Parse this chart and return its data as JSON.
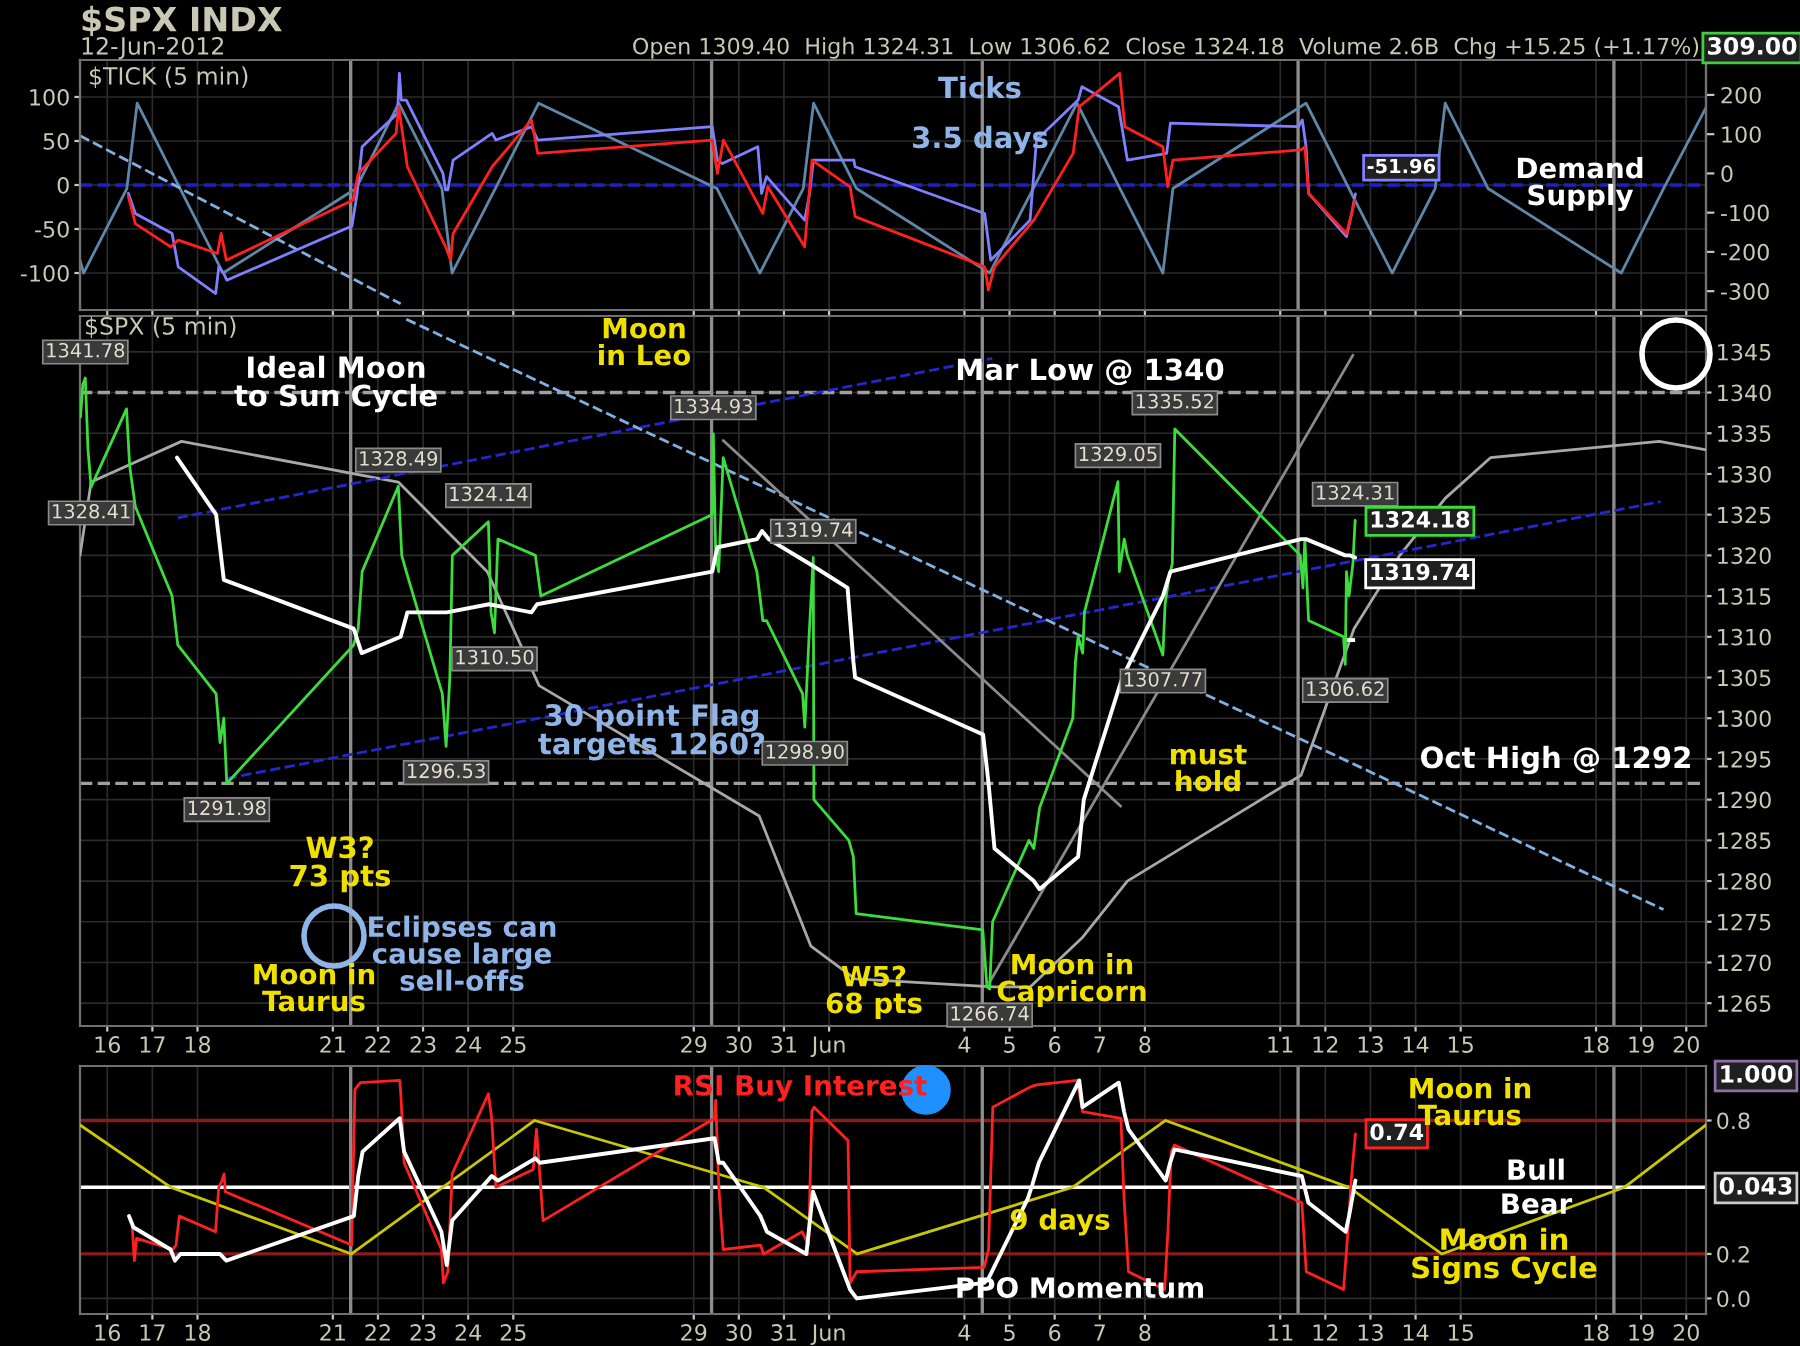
{
  "chart_data": [
    {
      "type": "line",
      "title": "$SPX INDX",
      "subtitle": "Open 1309.40  High 1324.31  Low 1306.62  Close 1324.18  Volume 2.6B  Chg +15.25 (+1.17%)",
      "annotations": [
        "12-Jun-2012",
        "$TICK (5 min)",
        "309.00",
        "Ticks",
        "3.5 days",
        "Demand\nSupply"
      ],
      "xlim": [
        "2012-05-15T09:30",
        "2012-06-20T10:30"
      ],
      "xticks": [
        {
          "value": "2012-05-16",
          "label": null
        },
        {
          "value": "2012-05-17",
          "label": null
        },
        {
          "value": "2012-05-18",
          "label": null
        },
        {
          "value": "2012-05-21",
          "label": null
        },
        {
          "value": "2012-05-22",
          "label": null
        },
        {
          "value": "2012-05-23",
          "label": null
        },
        {
          "value": "2012-05-24",
          "label": null
        },
        {
          "value": "2012-05-25",
          "label": null
        },
        {
          "value": "2012-05-29",
          "label": null
        },
        {
          "value": "2012-05-30",
          "label": null
        },
        {
          "value": "2012-05-31",
          "label": null
        },
        {
          "value": "2012-06-01",
          "label": null
        },
        {
          "value": "2012-06-04",
          "label": null
        },
        {
          "value": "2012-06-05",
          "label": null
        },
        {
          "value": "2012-06-06",
          "label": null
        },
        {
          "value": "2012-06-07",
          "label": null
        },
        {
          "value": "2012-06-08",
          "label": null
        },
        {
          "value": "2012-06-11",
          "label": null
        },
        {
          "value": "2012-06-12",
          "label": null
        },
        {
          "value": "2012-06-13",
          "label": null
        },
        {
          "value": "2012-06-14",
          "label": null
        },
        {
          "value": "2012-06-15",
          "label": null
        },
        {
          "value": "2012-06-18",
          "label": null
        },
        {
          "value": "2012-06-19",
          "label": null
        },
        {
          "value": "2012-06-20",
          "label": null
        }
      ],
      "ylim": [
        -142,
        142
      ],
      "yticks": [
        -100,
        -50,
        0,
        50,
        100
      ],
      "y2lim": [
        -348,
        289
      ],
      "y2ticks": [
        -300,
        -200,
        -100,
        0,
        100,
        200
      ],
      "tick_labels": "y",
      "grid": true,
      "ref_lines": [
        {
          "axis": "y",
          "value": 0,
          "color": "#2020c0",
          "line_style": "dashed"
        },
        {
          "axis": "x",
          "value": "2012-05-21T09:30",
          "color": "#8c8c8c"
        },
        {
          "axis": "x",
          "value": "2012-05-29T09:30",
          "color": "#8c8c8c"
        },
        {
          "axis": "x",
          "value": "2012-06-04T09:30",
          "color": "#8c8c8c"
        },
        {
          "axis": "x",
          "value": "2012-06-11T09:30",
          "color": "#8c8c8c"
        },
        {
          "axis": "x",
          "value": "2012-06-18T09:30",
          "color": "#8c8c8c"
        }
      ],
      "series": [
        {
          "color": "#5f87a8",
          "x": [
            "2012-05-15T09:30",
            "2012-05-15T11:25",
            "2012-05-16T10:25",
            "2012-05-16T15:55",
            "2012-05-17T14:45",
            "2012-05-18T13:35",
            "2012-05-21T12:20",
            "2012-05-22T11:05",
            "2012-05-23T10:00",
            "2012-05-23T15:25",
            "2012-05-24T14:25",
            "2012-05-25T13:30",
            "2012-05-29T12:20",
            "2012-05-30T11:10",
            "2012-05-31T10:15",
            "2012-05-31T15:45",
            "2012-06-01T14:35",
            "2012-06-04T13:25",
            "2012-06-05T12:35",
            "2012-06-06T11:55",
            "2012-06-07T10:45",
            "2012-06-08T09:35",
            "2012-06-08T14:55",
            "2012-06-11T13:45",
            "2012-06-12T12:35",
            "2012-06-13T11:35",
            "2012-06-14T10:25",
            "2012-06-14T15:45",
            "2012-06-15T14:35",
            "2012-06-18T13:25",
            "2012-06-19T11:55",
            "2012-06-20T10:30"
          ],
          "values": [
            -85,
            -100,
            -4,
            93,
            -4,
            -100,
            -4,
            93,
            -4,
            -100,
            -4,
            93,
            -4,
            -100,
            -4,
            93,
            -4,
            -100,
            -4,
            93,
            -4,
            -100,
            -4,
            93,
            -4,
            -100,
            -4,
            93,
            -4,
            -100,
            -4,
            88
          ]
        },
        {
          "color": "#7fb0e0",
          "line_style": "dashed",
          "x": [
            "2012-05-15T09:30",
            "2012-05-22T12:05"
          ],
          "values": [
            56,
            -135
          ]
        },
        {
          "color": "#8080ff",
          "axis": "y2",
          "x": [
            "2012-05-16T11:15",
            "2012-05-16T14:55",
            "2012-05-17T10:30",
            "2012-05-17T13:45",
            "2012-05-18T09:40",
            "2012-05-18T11:20",
            "2012-05-18T14:00",
            "2012-05-18T15:35",
            "2012-05-21T10:10",
            "2012-05-21T12:55",
            "2012-05-21T15:35",
            "2012-05-22T10:25",
            "2012-05-22T11:25",
            "2012-05-22T12:25",
            "2012-05-22T15:05",
            "2012-05-23T10:35",
            "2012-05-23T12:00",
            "2012-05-23T13:10",
            "2012-05-23T16:00",
            "2012-05-24T12:45",
            "2012-05-24T14:45",
            "2012-05-25T09:40",
            "2012-05-25T13:00",
            "2012-05-29T09:50",
            "2012-05-29T12:35",
            "2012-05-29T15:15",
            "2012-05-30T10:05",
            "2012-05-30T12:05",
            "2012-05-30T14:45",
            "2012-05-31T11:00",
            "2012-05-31T13:40",
            "2012-05-31T15:40",
            "2012-06-01T13:10",
            "2012-06-01T13:50",
            "2012-06-04T10:45",
            "2012-06-04T14:00",
            "2012-06-05T10:55",
            "2012-06-05T14:20",
            "2012-06-06T12:30",
            "2012-06-06T14:30",
            "2012-06-07T10:00",
            "2012-06-07T14:40",
            "2012-06-08T11:35",
            "2012-06-08T13:35",
            "2012-06-11T09:40",
            "2012-06-11T11:45",
            "2012-06-11T13:45",
            "2012-06-11T15:05",
            "2012-06-12T11:15",
            "2012-06-12T14:00",
            "2012-06-12T16:00"
          ],
          "values": [
            -51,
            -102,
            -153,
            -238,
            -306,
            -238,
            -255,
            -272,
            -134,
            -51,
            68,
            153,
            255,
            187,
            187,
            0,
            -42,
            -42,
            34,
            102,
            85,
            119,
            85,
            119,
            34,
            25,
            68,
            -51,
            -8,
            -119,
            -51,
            34,
            34,
            17,
            -102,
            -221,
            -119,
            85,
            187,
            221,
            170,
            34,
            51,
            128,
            119,
            136,
            68,
            -51,
            -161,
            -102,
            -51.96
          ],
          "value_labels": [
            null,
            null,
            null,
            null,
            null,
            null,
            null,
            null,
            null,
            null,
            null,
            null,
            null,
            null,
            null,
            null,
            null,
            null,
            null,
            null,
            null,
            null,
            null,
            null,
            null,
            null,
            null,
            null,
            null,
            null,
            null,
            null,
            null,
            null,
            null,
            null,
            null,
            null,
            null,
            null,
            null,
            null,
            null,
            null,
            null,
            null,
            null,
            null,
            null,
            null,
            "-51.96"
          ]
        },
        {
          "color": "#ff2020",
          "axis": "y2",
          "x": [
            "2012-05-16T11:15",
            "2012-05-16T14:55",
            "2012-05-17T09:45",
            "2012-05-17T13:45",
            "2012-05-18T10:35",
            "2012-05-18T12:35",
            "2012-05-18T15:20",
            "2012-05-21T10:50",
            "2012-05-21T13:30",
            "2012-05-22T09:40",
            "2012-05-22T11:05",
            "2012-05-22T13:05",
            "2012-05-22T15:40",
            "2012-05-23T12:00",
            "2012-05-23T14:40",
            "2012-05-23T16:00",
            "2012-05-24T12:45",
            "2012-05-25T09:40",
            "2012-05-25T13:00",
            "2012-05-29T09:50",
            "2012-05-29T12:35",
            "2012-05-29T15:50",
            "2012-05-30T12:45",
            "2012-05-30T15:25",
            "2012-05-31T11:00",
            "2012-05-31T14:55",
            "2012-06-01T11:10",
            "2012-06-01T13:50",
            "2012-06-04T10:45",
            "2012-06-04T12:45",
            "2012-06-04T16:00",
            "2012-06-05T12:55",
            "2012-06-06T09:50",
            "2012-06-06T13:05",
            "2012-06-07T10:35",
            "2012-06-07T13:20",
            "2012-06-08T09:35",
            "2012-06-08T12:10",
            "2012-06-08T14:55",
            "2012-06-11T11:05",
            "2012-06-11T13:05",
            "2012-06-11T15:05",
            "2012-06-12T11:15",
            "2012-06-12T14:00",
            "2012-06-12T15:40"
          ],
          "values": [
            -59,
            -128,
            -187,
            -170,
            -204,
            -153,
            -221,
            -68,
            0,
            102,
            170,
            102,
            17,
            -187,
            -221,
            -153,
            17,
            136,
            51,
            85,
            0,
            85,
            -102,
            -34,
            -187,
            34,
            -34,
            -110,
            -238,
            -297,
            -238,
            -119,
            51,
            170,
            255,
            119,
            68,
            -34,
            34,
            60,
            68,
            -51,
            -153,
            -102,
            -68
          ]
        }
      ]
    },
    {
      "type": "line",
      "annotations": [
        "$SPX (5 min)",
        "Ideal Moon\nto Sun Cycle",
        "Moon\nin Leo",
        "Mar Low @ 1340",
        "Oct High @ 1292",
        "30 point Flag\ntargets 1260?",
        "W3?\n73 pts",
        "Eclipses can\ncause large\nsell-offs",
        "Moon in\nTaurus",
        "W5?\n68 pts",
        "Moon in\nCapricorn",
        "must\nhold"
      ],
      "xlim": [
        "2012-05-15T09:30",
        "2012-06-20T10:30"
      ],
      "xticks": [
        {
          "value": "2012-05-16",
          "label": "16"
        },
        {
          "value": "2012-05-17",
          "label": "17"
        },
        {
          "value": "2012-05-18",
          "label": "18"
        },
        {
          "value": "2012-05-21",
          "label": "21"
        },
        {
          "value": "2012-05-22",
          "label": "22"
        },
        {
          "value": "2012-05-23",
          "label": "23"
        },
        {
          "value": "2012-05-24",
          "label": "24"
        },
        {
          "value": "2012-05-25",
          "label": "25"
        },
        {
          "value": "2012-05-29",
          "label": "29"
        },
        {
          "value": "2012-05-30",
          "label": "30"
        },
        {
          "value": "2012-05-31",
          "label": "31"
        },
        {
          "value": "2012-06-01",
          "label": "Jun"
        },
        {
          "value": "2012-06-04",
          "label": "4"
        },
        {
          "value": "2012-06-05",
          "label": "5"
        },
        {
          "value": "2012-06-06",
          "label": "6"
        },
        {
          "value": "2012-06-07",
          "label": "7"
        },
        {
          "value": "2012-06-08",
          "label": "8"
        },
        {
          "value": "2012-06-11",
          "label": "11"
        },
        {
          "value": "2012-06-12",
          "label": "12"
        },
        {
          "value": "2012-06-13",
          "label": "13"
        },
        {
          "value": "2012-06-14",
          "label": "14"
        },
        {
          "value": "2012-06-15",
          "label": "15"
        },
        {
          "value": "2012-06-18",
          "label": "18"
        },
        {
          "value": "2012-06-19",
          "label": "19"
        },
        {
          "value": "2012-06-20",
          "label": "20"
        }
      ],
      "ylim": [
        1262.2,
        1349.4
      ],
      "yticks": [
        1265,
        1270,
        1275,
        1280,
        1285,
        1290,
        1295,
        1300,
        1305,
        1310,
        1315,
        1320,
        1325,
        1330,
        1335,
        1340,
        1345
      ],
      "grid": true,
      "ref_lines": [
        {
          "axis": "y",
          "value": 1340,
          "color": "#a0a0a0",
          "line_style": "dashed"
        },
        {
          "axis": "y",
          "value": 1292,
          "color": "#a0a0a0",
          "line_style": "dashed"
        },
        {
          "axis": "x",
          "value": "2012-05-21T09:30",
          "color": "#8c8c8c"
        },
        {
          "axis": "x",
          "value": "2012-05-29T09:30",
          "color": "#8c8c8c"
        },
        {
          "axis": "x",
          "value": "2012-06-04T09:30",
          "color": "#8c8c8c"
        },
        {
          "axis": "x",
          "value": "2012-06-11T09:30",
          "color": "#8c8c8c"
        },
        {
          "axis": "x",
          "value": "2012-06-18T09:30",
          "color": "#8c8c8c"
        }
      ],
      "series": [
        {
          "color": "#a8a8a8",
          "x": [
            "2012-05-15T09:30",
            "2012-05-15T15:25",
            "2012-05-17T15:30",
            "2012-05-22T10:50",
            "2012-05-24T10:10",
            "2012-05-25T13:45",
            "2012-05-30T10:50",
            "2012-05-31T14:20",
            "2012-06-01T13:50",
            "2012-06-04T15:25",
            "2012-06-05T10:55",
            "2012-06-06T14:30",
            "2012-06-07T14:40",
            "2012-06-11T11:05",
            "2012-06-12T15:15",
            "2012-06-13T15:35",
            "2012-06-14T15:45",
            "2012-06-15T15:50",
            "2012-06-19T09:40",
            "2012-06-20T09:55"
          ],
          "values": [
            1320,
            1329,
            1334,
            1329,
            1318,
            1304,
            1288,
            1272,
            1268,
            1267,
            1267,
            1273,
            1280,
            1293,
            1311,
            1320,
            1327,
            1332,
            1334,
            1333
          ]
        },
        {
          "color": "#2626d0",
          "line_style": "dashed",
          "x": [
            "2012-05-17T13:30",
            "2012-06-04T14:50"
          ],
          "values": [
            1324.6,
            1344.2
          ]
        },
        {
          "color": "#2626d0",
          "line_style": "dashed",
          "x": [
            "2012-05-18T15:35",
            "2012-06-19T10:20"
          ],
          "values": [
            1292.6,
            1326.6
          ]
        },
        {
          "color": "#7fb0e0",
          "line_style": "dashed",
          "x": [
            "2012-05-22T15:05",
            "2012-06-19T11:55"
          ],
          "values": [
            1349,
            1276.5
          ]
        },
        {
          "color": "#8a8a8a",
          "x": [
            "2012-05-29T15:40",
            "2012-06-07T11:10"
          ],
          "values": [
            1334.1,
            1289.2
          ]
        },
        {
          "color": "#8a8a8a",
          "x": [
            "2012-06-04T13:25",
            "2012-06-12T14:40"
          ],
          "values": [
            1267.6,
            1344.6
          ]
        },
        {
          "color": "#ffffff",
          "line_style": "dashed",
          "x": [
            "2012-06-12T09:40",
            "2012-06-12T15:50"
          ],
          "values": [
            1309.6,
            1309.6
          ]
        },
        {
          "color": "#3ddc3d",
          "x": [
            "2012-05-15T09:45",
            "2012-05-15T11:00",
            "2012-05-15T12:20",
            "2012-05-15T13:45",
            "2012-05-15T15:25",
            "2012-05-16T10:15",
            "2012-05-16T11:55",
            "2012-05-16T14:55",
            "2012-05-17T10:30",
            "2012-05-17T13:30",
            "2012-05-18T09:55",
            "2012-05-18T12:00",
            "2012-05-18T14:00",
            "2012-05-18T15:35",
            "2012-05-21T11:05",
            "2012-05-21T13:30",
            "2012-05-21T15:35",
            "2012-05-22T10:50",
            "2012-05-22T12:40",
            "2012-05-22T15:05",
            "2012-05-23T10:15",
            "2012-05-23T12:15",
            "2012-05-23T14:15",
            "2012-05-23T15:35",
            "2012-05-24T10:45",
            "2012-05-24T12:10",
            "2012-05-24T14:00",
            "2012-05-24T15:50",
            "2012-05-25T11:45",
            "2012-05-25T14:40",
            "2012-05-29T09:40",
            "2012-05-29T10:25",
            "2012-05-29T11:40",
            "2012-05-29T13:15",
            "2012-05-29T15:40",
            "2012-05-30T09:35",
            "2012-05-30T12:45",
            "2012-05-30T14:45",
            "2012-05-31T09:55",
            "2012-05-31T11:05",
            "2012-05-31T13:20",
            "2012-05-31T15:35",
            "2012-05-31T15:55",
            "2012-06-01T10:30",
            "2012-06-01T12:55",
            "2012-06-01T14:25",
            "2012-06-04T09:45",
            "2012-06-04T12:00",
            "2012-06-04T13:25",
            "2012-06-04T15:00",
            "2012-06-05T10:20",
            "2012-06-05T12:55",
            "2012-06-05T16:00",
            "2012-06-06T09:40",
            "2012-06-06T11:05",
            "2012-06-06T12:30",
            "2012-06-06T14:55",
            "2012-06-06T15:50",
            "2012-06-07T09:40",
            "2012-06-07T10:25",
            "2012-06-07T13:00",
            "2012-06-07T14:40",
            "2012-06-08T09:35",
            "2012-06-08T10:45",
            "2012-06-08T12:35",
            "2012-06-08T14:35",
            "2012-06-08T15:55",
            "2012-06-11T10:40",
            "2012-06-11T12:05",
            "2012-06-11T13:05",
            "2012-06-11T15:05",
            "2012-06-12T09:40",
            "2012-06-12T10:35",
            "2012-06-12T11:15",
            "2012-06-12T12:35",
            "2012-06-12T14:40",
            "2012-06-12T15:50",
            "2012-06-12T16:00"
          ],
          "values": [
            1337,
            1341,
            1341.78,
            1333,
            1328.41,
            1338,
            1331,
            1326,
            1315,
            1309,
            1303,
            1297,
            1300,
            1291.98,
            1309,
            1311,
            1318,
            1328.49,
            1320,
            1318,
            1303,
            1296.53,
            1305,
            1320,
            1324.14,
            1313,
            1310.5,
            1322,
            1320,
            1315,
            1325,
            1334.93,
            1320,
            1318,
            1332,
            1318,
            1312,
            1312,
            1303,
            1298.9,
            1310,
            1319.74,
            1290,
            1285,
            1283,
            1276,
            1274,
            1267,
            1266.74,
            1275,
            1285,
            1284,
            1289,
            1300,
            1307,
            1310,
            1308,
            1313,
            1329.05,
            1318,
            1322,
            1320,
            1307.77,
            1314,
            1317,
            1319,
            1335.52,
            1320,
            1316,
            1322,
            1312,
            1310,
            1306.62,
            1318,
            1315,
            1319,
            1324.31,
            1324.18
          ],
          "value_labels": [
            null,
            null,
            "1341.78",
            null,
            "1328.41",
            null,
            null,
            null,
            null,
            null,
            null,
            null,
            null,
            "1291.98",
            null,
            null,
            null,
            "1328.49",
            null,
            null,
            null,
            "1296.53",
            null,
            null,
            "1324.14",
            null,
            "1310.50",
            null,
            null,
            null,
            null,
            "1334.93",
            null,
            null,
            null,
            null,
            null,
            null,
            null,
            "1298.90",
            null,
            "1319.74",
            null,
            null,
            null,
            null,
            null,
            null,
            "1266.74",
            null,
            null,
            null,
            null,
            null,
            null,
            null,
            null,
            null,
            "1329.05",
            null,
            null,
            null,
            "1307.77",
            null,
            null,
            null,
            "1335.52",
            null,
            null,
            null,
            null,
            null,
            "1306.62",
            null,
            null,
            null,
            "1324.31",
            "1324.18"
          ]
        },
        {
          "color": "#ffffff",
          "x": [
            "2012-05-17T13:05",
            "2012-05-18T09:55",
            "2012-05-18T14:00",
            "2012-05-21T11:05",
            "2012-05-21T15:20",
            "2012-05-22T12:05",
            "2012-05-22T15:40",
            "2012-05-23T12:35",
            "2012-05-24T11:05",
            "2012-05-25T09:40",
            "2012-05-25T12:40",
            "2012-05-29T09:50",
            "2012-05-29T12:35",
            "2012-05-30T09:45",
            "2012-05-30T12:20",
            "2012-05-30T15:50",
            "2012-05-31T13:20",
            "2012-06-01T09:50",
            "2012-06-01T12:55",
            "2012-06-01T13:50",
            "2012-06-04T09:55",
            "2012-06-04T12:50",
            "2012-06-04T16:00",
            "2012-06-05T12:55",
            "2012-06-05T15:55",
            "2012-06-06T12:30",
            "2012-06-06T15:30",
            "2012-06-07T12:00",
            "2012-06-08T09:35",
            "2012-06-08T13:35",
            "2012-06-11T11:05",
            "2012-06-11T13:45",
            "2012-06-12T10:35",
            "2012-06-12T13:00",
            "2012-06-12T15:50"
          ],
          "values": [
            1332,
            1325,
            1317,
            1311,
            1308,
            1310,
            1313,
            1313,
            1314,
            1313,
            1314,
            1318,
            1321,
            1322,
            1323,
            1322,
            1319,
            1316,
            1307,
            1305,
            1298,
            1292,
            1284,
            1280,
            1279,
            1283,
            1290,
            1305,
            1315,
            1318,
            1322,
            1322,
            1320,
            1320,
            1319.74
          ],
          "value_labels": [
            null,
            null,
            null,
            null,
            null,
            null,
            null,
            null,
            null,
            null,
            null,
            null,
            null,
            null,
            null,
            null,
            null,
            null,
            null,
            null,
            null,
            null,
            null,
            null,
            null,
            null,
            null,
            null,
            null,
            null,
            null,
            null,
            null,
            null,
            "1319.74"
          ]
        }
      ]
    },
    {
      "type": "line",
      "annotations": [
        "1.000",
        "0.043",
        "RSI Buy Interest",
        "Moon in\nTaurus",
        "Bull",
        "Bear",
        "9 days",
        "PPO Momentum",
        "Moon in\nSigns Cycle"
      ],
      "xlim": [
        "2012-05-15T09:30",
        "2012-06-20T10:30"
      ],
      "xticks": [
        {
          "value": "2012-05-16",
          "label": "16"
        },
        {
          "value": "2012-05-17",
          "label": "17"
        },
        {
          "value": "2012-05-18",
          "label": "18"
        },
        {
          "value": "2012-05-21",
          "label": "21"
        },
        {
          "value": "2012-05-22",
          "label": "22"
        },
        {
          "value": "2012-05-23",
          "label": "23"
        },
        {
          "value": "2012-05-24",
          "label": "24"
        },
        {
          "value": "2012-05-25",
          "label": "25"
        },
        {
          "value": "2012-05-29",
          "label": "29"
        },
        {
          "value": "2012-05-30",
          "label": "30"
        },
        {
          "value": "2012-05-31",
          "label": "31"
        },
        {
          "value": "2012-06-01",
          "label": "Jun"
        },
        {
          "value": "2012-06-04",
          "label": "4"
        },
        {
          "value": "2012-06-05",
          "label": "5"
        },
        {
          "value": "2012-06-06",
          "label": "6"
        },
        {
          "value": "2012-06-07",
          "label": "7"
        },
        {
          "value": "2012-06-08",
          "label": "8"
        },
        {
          "value": "2012-06-11",
          "label": "11"
        },
        {
          "value": "2012-06-12",
          "label": "12"
        },
        {
          "value": "2012-06-13",
          "label": "13"
        },
        {
          "value": "2012-06-14",
          "label": "14"
        },
        {
          "value": "2012-06-15",
          "label": "15"
        },
        {
          "value": "2012-06-18",
          "label": "18"
        },
        {
          "value": "2012-06-19",
          "label": "19"
        },
        {
          "value": "2012-06-20",
          "label": "20"
        }
      ],
      "ylim": [
        -0.07,
        1.045
      ],
      "yticks": [
        {
          "value": 0,
          "label": "0.0"
        },
        0.2,
        0.8
      ],
      "grid": true,
      "ref_lines": [
        {
          "axis": "y",
          "value": 0.8,
          "color": "#8b1a1a"
        },
        {
          "axis": "y",
          "value": 0.2,
          "color": "#8b1a1a"
        },
        {
          "axis": "y",
          "value": 0.5,
          "color": "#ffffff"
        },
        {
          "axis": "x",
          "value": "2012-05-21T09:30",
          "color": "#8c8c8c"
        },
        {
          "axis": "x",
          "value": "2012-05-29T09:30",
          "color": "#8c8c8c"
        },
        {
          "axis": "x",
          "value": "2012-06-04T09:30",
          "color": "#8c8c8c"
        },
        {
          "axis": "x",
          "value": "2012-06-11T09:30",
          "color": "#8c8c8c"
        },
        {
          "axis": "x",
          "value": "2012-06-18T09:30",
          "color": "#8c8c8c"
        }
      ],
      "series": [
        {
          "color": "#c8c800",
          "x": [
            "2012-05-15T09:30",
            "2012-05-17T09:40",
            "2012-05-21T09:55",
            "2012-05-23T10:35",
            "2012-05-25T11:20",
            "2012-05-30T13:00",
            "2012-06-01T14:55",
            "2012-06-06T09:40",
            "2012-06-08T11:00",
            "2012-06-12T12:25",
            "2012-06-14T13:55",
            "2012-06-18T15:15",
            "2012-06-20T10:30"
          ],
          "values": [
            0.78,
            0.5,
            0.2,
            0.5,
            0.8,
            0.5,
            0.2,
            0.5,
            0.8,
            0.5,
            0.2,
            0.5,
            0.78
          ]
        },
        {
          "color": "#ff2020",
          "x": [
            "2012-05-16T13:20",
            "2012-05-16T14:25",
            "2012-05-16T15:35",
            "2012-05-17T10:50",
            "2012-05-17T12:35",
            "2012-05-17T14:20",
            "2012-05-18T09:35",
            "2012-05-18T11:20",
            "2012-05-18T13:00",
            "2012-05-18T14:10",
            "2012-05-18T14:45",
            "2012-05-21T10:00",
            "2012-05-21T11:45",
            "2012-05-21T14:40",
            "2012-05-22T11:35",
            "2012-05-22T12:10",
            "2012-05-22T13:55",
            "2012-05-23T09:45",
            "2012-05-23T10:50",
            "2012-05-23T13:10",
            "2012-05-23T15:30",
            "2012-05-24T10:45",
            "2012-05-24T12:30",
            "2012-05-24T14:45",
            "2012-05-25T10:35",
            "2012-05-25T12:20",
            "2012-05-25T14:05",
            "2012-05-25T15:50",
            "2012-05-29T11:05",
            "2012-05-29T11:40",
            "2012-05-29T13:20",
            "2012-05-29T15:40",
            "2012-05-30T11:30",
            "2012-05-30T13:10",
            "2012-05-31T09:40",
            "2012-05-31T13:05",
            "2012-05-31T14:50",
            "2012-05-31T16:00",
            "2012-06-01T10:05",
            "2012-06-01T11:10",
            "2012-06-01T14:40",
            "2012-06-04T10:30",
            "2012-06-04T12:50",
            "2012-06-04T15:05",
            "2012-06-05T10:55",
            "2012-06-05T14:20",
            "2012-06-06T12:00",
            "2012-06-06T14:50",
            "2012-06-07T11:15",
            "2012-06-07T12:55",
            "2012-06-07T15:15",
            "2012-06-08T10:30",
            "2012-06-08T12:15",
            "2012-06-08T14:00",
            "2012-06-08T15:45",
            "2012-06-11T11:30",
            "2012-06-11T13:50",
            "2012-06-12T09:40",
            "2012-06-12T12:00",
            "2012-06-12T13:45",
            "2012-06-12T16:00"
          ],
          "values": [
            0.32,
            0.17,
            0.27,
            0.22,
            0.24,
            0.37,
            0.3,
            0.5,
            0.53,
            0.56,
            0.48,
            0.24,
            0.94,
            0.97,
            0.98,
            0.92,
            0.61,
            0.22,
            0.07,
            0.12,
            0.56,
            0.92,
            0.81,
            0.5,
            0.58,
            0.76,
            0.56,
            0.35,
            0.81,
            0.89,
            0.5,
            0.22,
            0.24,
            0.2,
            0.3,
            0.24,
            0.84,
            0.86,
            0.71,
            0.07,
            0.12,
            0.14,
            0.22,
            0.86,
            0.95,
            0.96,
            0.98,
            0.84,
            0.81,
            0.45,
            0.12,
            0.04,
            0.3,
            0.66,
            0.69,
            0.43,
            0.12,
            0.04,
            0.3,
            0.53,
            0.74
          ],
          "value_labels": [
            null,
            null,
            null,
            null,
            null,
            null,
            null,
            null,
            null,
            null,
            null,
            null,
            null,
            null,
            null,
            null,
            null,
            null,
            null,
            null,
            null,
            null,
            null,
            null,
            null,
            null,
            null,
            null,
            null,
            null,
            null,
            null,
            null,
            null,
            null,
            null,
            null,
            null,
            null,
            null,
            null,
            null,
            null,
            null,
            null,
            null,
            null,
            null,
            null,
            null,
            null,
            null,
            null,
            null,
            null,
            null,
            null,
            null,
            null,
            null,
            "0.74"
          ]
        },
        {
          "color": "#ffffff",
          "x": [
            "2012-05-16T11:35",
            "2012-05-16T13:55",
            "2012-05-17T09:40",
            "2012-05-17T12:00",
            "2012-05-17T14:55",
            "2012-05-18T11:55",
            "2012-05-18T15:20",
            "2012-05-21T11:10",
            "2012-05-21T13:30",
            "2012-05-21T15:50",
            "2012-05-22T11:35",
            "2012-05-22T13:55",
            "2012-05-23T09:45",
            "2012-05-23T12:35",
            "2012-05-23T15:30",
            "2012-05-24T12:30",
            "2012-05-24T15:55",
            "2012-05-25T11:45",
            "2012-05-25T14:05",
            "2012-05-29T11:05",
            "2012-05-29T13:20",
            "2012-05-29T15:40",
            "2012-05-30T11:30",
            "2012-05-30T14:55",
            "2012-05-31T11:55",
            "2012-05-31T15:25",
            "2012-06-01T11:10",
            "2012-06-01T14:40",
            "2012-06-04T10:30",
            "2012-06-04T12:50",
            "2012-06-05T09:45",
            "2012-06-05T12:05",
            "2012-06-05T15:35",
            "2012-06-06T13:05",
            "2012-06-06T14:50",
            "2012-06-07T10:05",
            "2012-06-07T12:55",
            "2012-06-07T15:15",
            "2012-06-08T11:05",
            "2012-06-08T13:25",
            "2012-06-08T15:45",
            "2012-06-11T11:30",
            "2012-06-11T15:00",
            "2012-06-12T10:50",
            "2012-06-12T12:35",
            "2012-06-12T16:00"
          ],
          "values": [
            0.37,
            0.32,
            0.22,
            0.17,
            0.2,
            0.2,
            0.17,
            0.37,
            0.55,
            0.66,
            0.81,
            0.66,
            0.3,
            0.15,
            0.35,
            0.55,
            0.53,
            0.63,
            0.61,
            0.72,
            0.61,
            0.61,
            0.37,
            0.3,
            0.2,
            0.48,
            0.04,
            0.0,
            0.07,
            0.09,
            0.45,
            0.51,
            0.61,
            0.98,
            0.86,
            0.97,
            0.84,
            0.76,
            0.53,
            0.61,
            0.67,
            0.55,
            0.43,
            0.3,
            0.37,
            0.53
          ]
        }
      ]
    }
  ]
}
